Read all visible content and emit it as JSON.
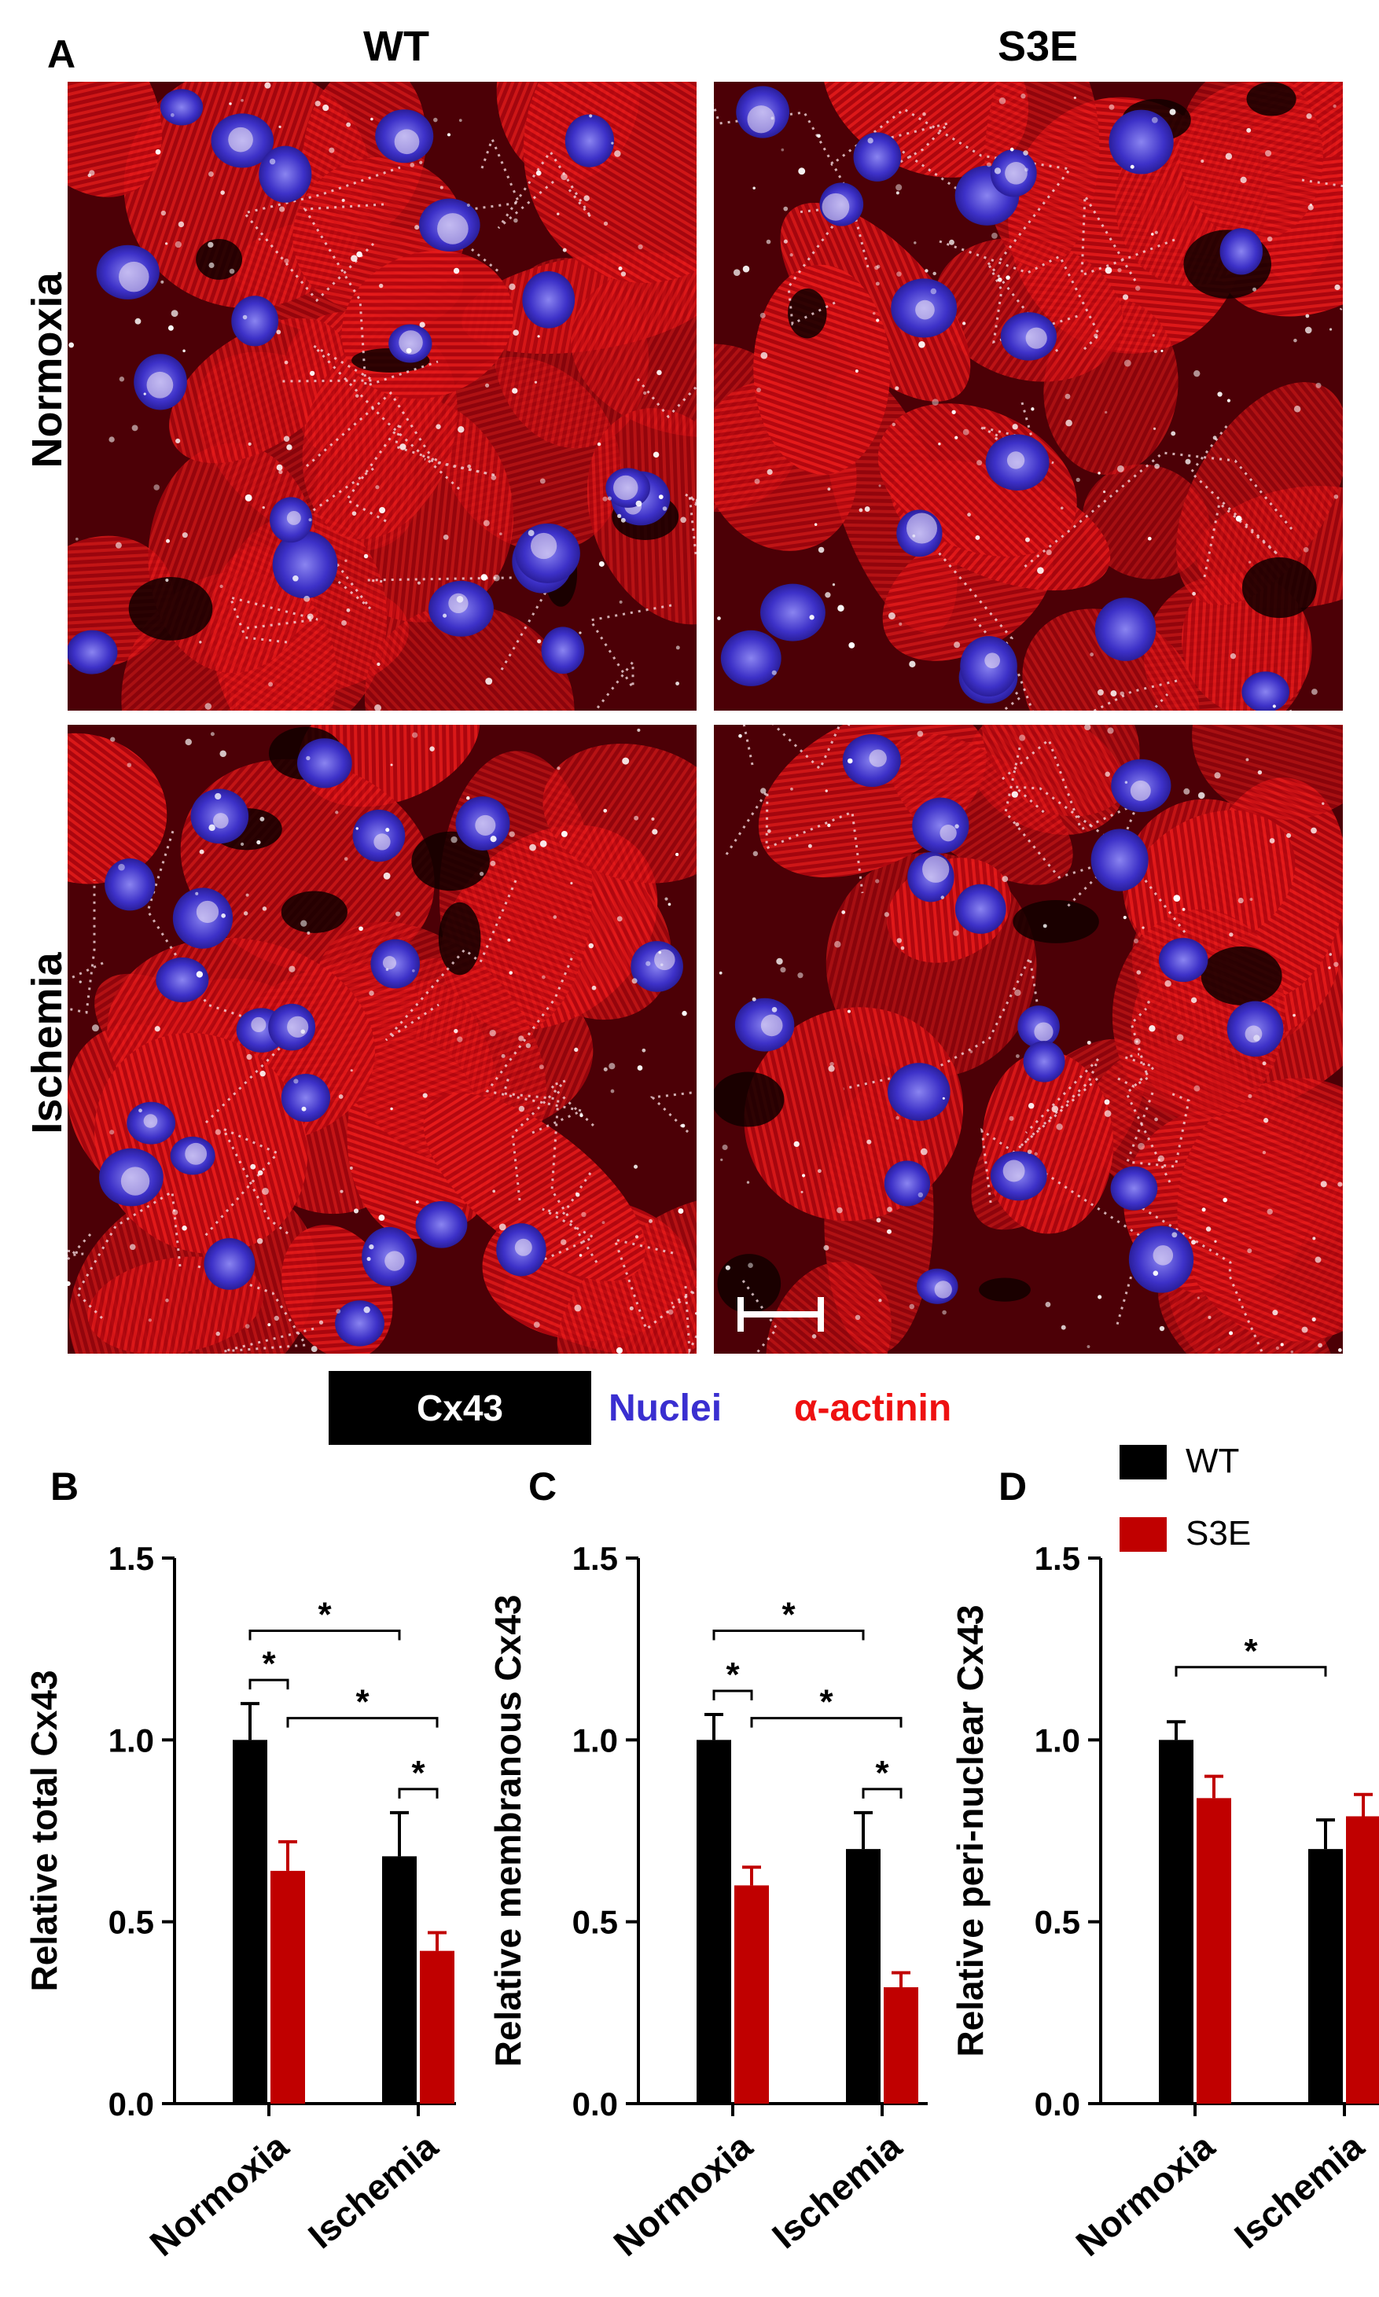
{
  "panels": {
    "A": "A",
    "B": "B",
    "C": "C",
    "D": "D"
  },
  "columns": [
    "WT",
    "S3E"
  ],
  "rows": [
    "Normoxia",
    "Ischemia"
  ],
  "stain_legend": {
    "cx43": "Cx43",
    "nuclei": "Nuclei",
    "actinin": "α-actinin",
    "colors": {
      "cx43_bg": "#000000",
      "nuclei": "#3a2fd0",
      "actinin": "#ee1111"
    }
  },
  "series_legend": [
    {
      "name": "WT",
      "color": "#000000"
    },
    {
      "name": "S3E",
      "color": "#c00000"
    }
  ],
  "chart_data": [
    {
      "type": "bar",
      "panel": "B",
      "categories": [
        "Normoxia",
        "Ischemia"
      ],
      "series": [
        {
          "name": "WT",
          "values": [
            1.0,
            0.68
          ],
          "errors": [
            0.1,
            0.12
          ]
        },
        {
          "name": "S3E",
          "values": [
            0.64,
            0.42
          ],
          "errors": [
            0.08,
            0.05
          ]
        }
      ],
      "ylabel": "Relative total  Cx43",
      "ylim": [
        0,
        1.5
      ],
      "yticks": [
        "0.0",
        "0.5",
        "1.0",
        "1.5"
      ],
      "significance": [
        {
          "from": "Normoxia.WT",
          "to": "Ischemia.WT",
          "label": "*"
        },
        {
          "from": "Normoxia.WT",
          "to": "Normoxia.S3E",
          "label": "*"
        },
        {
          "from": "Normoxia.S3E",
          "to": "Ischemia.S3E",
          "label": "*"
        },
        {
          "from": "Ischemia.WT",
          "to": "Ischemia.S3E",
          "label": "*"
        }
      ]
    },
    {
      "type": "bar",
      "panel": "C",
      "categories": [
        "Normoxia",
        "Ischemia"
      ],
      "series": [
        {
          "name": "WT",
          "values": [
            1.0,
            0.7
          ],
          "errors": [
            0.07,
            0.1
          ]
        },
        {
          "name": "S3E",
          "values": [
            0.6,
            0.32
          ],
          "errors": [
            0.05,
            0.04
          ]
        }
      ],
      "ylabel": "Relative membranous Cx43",
      "ylim": [
        0,
        1.5
      ],
      "yticks": [
        "0.0",
        "0.5",
        "1.0",
        "1.5"
      ],
      "significance": [
        {
          "from": "Normoxia.WT",
          "to": "Ischemia.WT",
          "label": "*"
        },
        {
          "from": "Normoxia.WT",
          "to": "Normoxia.S3E",
          "label": "*"
        },
        {
          "from": "Normoxia.S3E",
          "to": "Ischemia.S3E",
          "label": "*"
        },
        {
          "from": "Ischemia.WT",
          "to": "Ischemia.S3E",
          "label": "*"
        }
      ]
    },
    {
      "type": "bar",
      "panel": "D",
      "categories": [
        "Normoxia",
        "Ischemia"
      ],
      "series": [
        {
          "name": "WT",
          "values": [
            1.0,
            0.7
          ],
          "errors": [
            0.05,
            0.08
          ]
        },
        {
          "name": "S3E",
          "values": [
            0.84,
            0.79
          ],
          "errors": [
            0.06,
            0.06
          ]
        }
      ],
      "ylabel": "Relative peri-nuclear  Cx43",
      "ylim": [
        0,
        1.5
      ],
      "yticks": [
        "0.0",
        "0.5",
        "1.0",
        "1.5"
      ],
      "significance": [
        {
          "from": "Normoxia.WT",
          "to": "Ischemia.WT",
          "label": "*"
        }
      ]
    }
  ]
}
